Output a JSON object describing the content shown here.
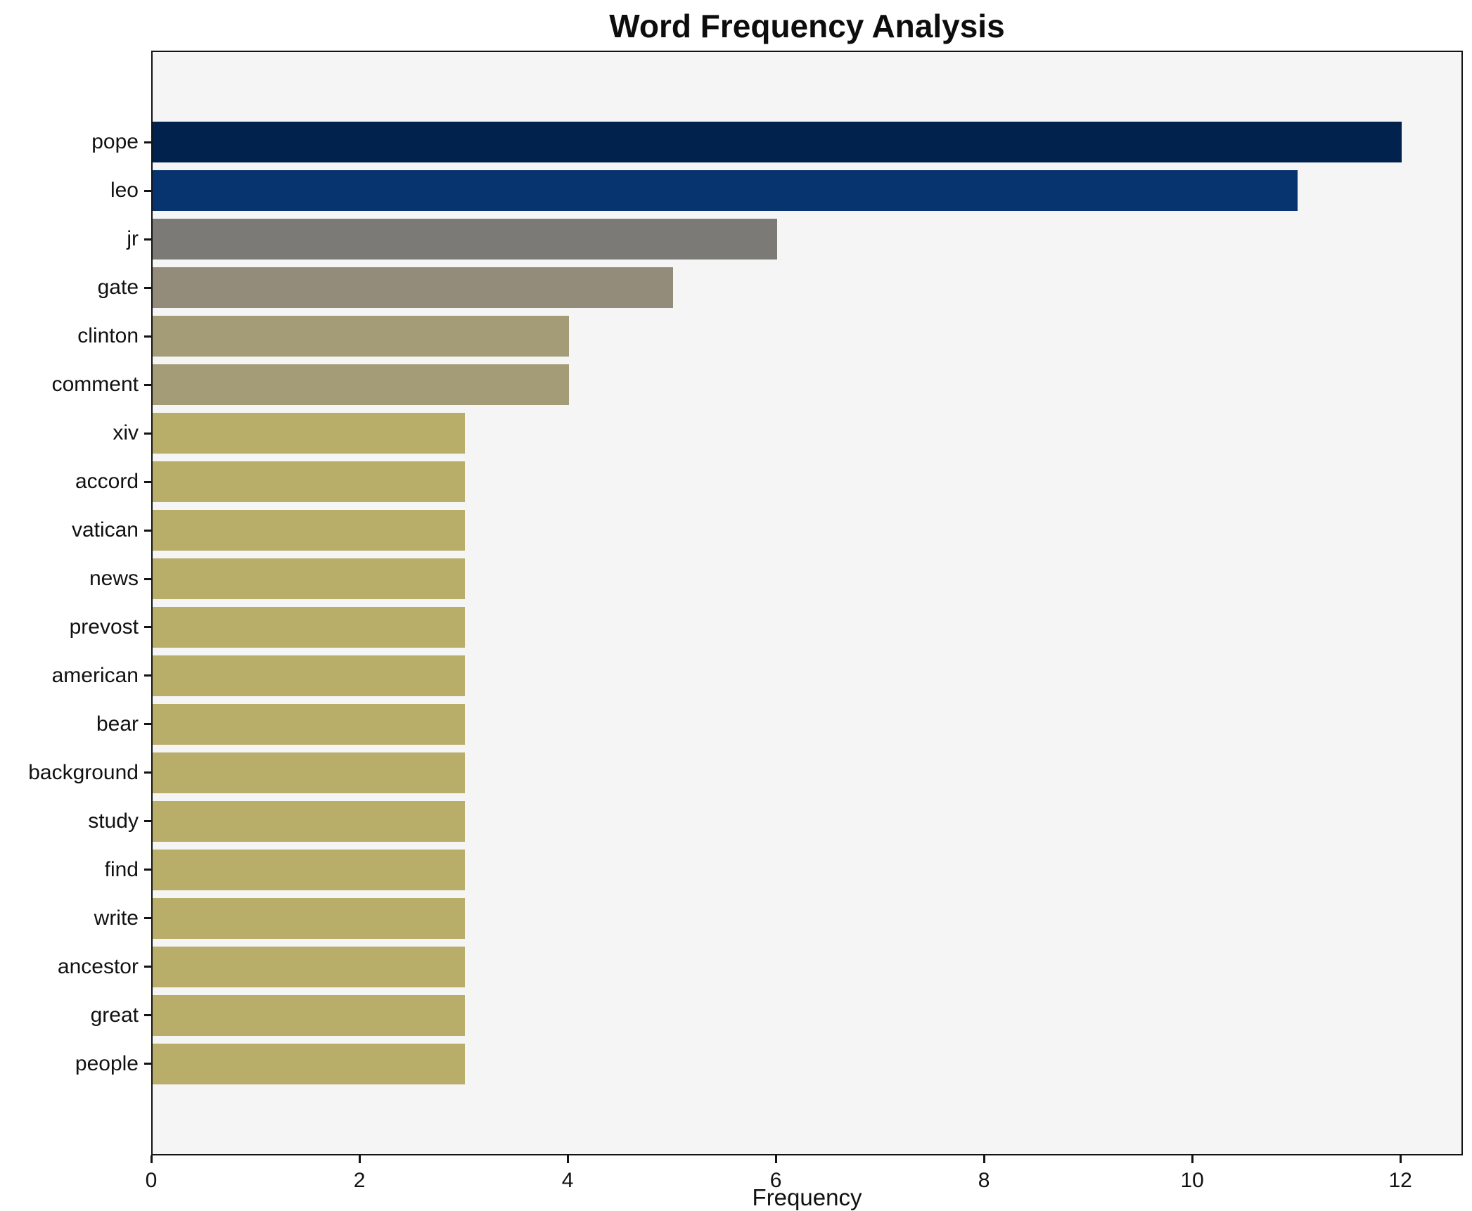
{
  "figure": {
    "background": "#ffffff",
    "plot_background": "#f5f5f6",
    "spine_color": "#141414",
    "text_color": "#111111"
  },
  "chart_data": {
    "type": "bar",
    "orientation": "horizontal",
    "title": "Word Frequency Analysis",
    "xlabel": "Frequency",
    "ylabel": "",
    "categories": [
      "pope",
      "leo",
      "jr",
      "gate",
      "clinton",
      "comment",
      "xiv",
      "accord",
      "vatican",
      "news",
      "prevost",
      "american",
      "bear",
      "background",
      "study",
      "find",
      "write",
      "ancestor",
      "great",
      "people"
    ],
    "values": [
      12,
      11,
      6,
      5,
      4,
      4,
      3,
      3,
      3,
      3,
      3,
      3,
      3,
      3,
      3,
      3,
      3,
      3,
      3,
      3
    ],
    "bar_colors": [
      "#01224d",
      "#07336e",
      "#7b7a77",
      "#948c7b",
      "#a49c77",
      "#a49c77",
      "#b9ad6a",
      "#b9ad6a",
      "#b9ad6a",
      "#b9ad6a",
      "#b9ad6a",
      "#b9ad6a",
      "#b9ad6a",
      "#b9ad6a",
      "#b9ad6a",
      "#b9ad6a",
      "#b9ad6a",
      "#b9ad6a",
      "#b9ad6a",
      "#b9ad6a"
    ],
    "xticks": [
      0,
      2,
      4,
      6,
      8,
      10,
      12
    ],
    "xlim": [
      0,
      12.6
    ],
    "grid": false,
    "legend": null
  }
}
